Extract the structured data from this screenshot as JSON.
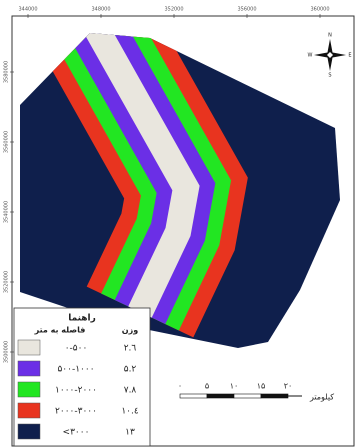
{
  "map": {
    "top_ticks": [
      "344000",
      "348000",
      "352000",
      "356000",
      "360000"
    ],
    "left_ticks": [
      "3580000",
      "3560000",
      "3540000",
      "3520000",
      "3500000"
    ],
    "compass": {
      "n": "N",
      "s": "S",
      "e": "E",
      "w": "W"
    },
    "legend": {
      "title": "راهنما",
      "col_distance": "فاصله به متر",
      "col_weight": "وزن",
      "rows": [
        {
          "label": "۰-۵۰۰",
          "weight": "۲.٦",
          "color": "#e9e6de"
        },
        {
          "label": "۵۰۰-۱۰۰۰",
          "weight": "۵.۲",
          "color": "#6b2fe6"
        },
        {
          "label": "۱۰۰۰-۲۰۰۰",
          "weight": "۷.۸",
          "color": "#22e622"
        },
        {
          "label": "۲۰۰۰-۳۰۰۰",
          "weight": "۱۰.٤",
          "color": "#e8341f"
        },
        {
          "label": "<۳۰۰۰",
          "weight": "۱۳",
          "color": "#0f1f4c"
        }
      ]
    },
    "scale": {
      "ticks": [
        "۰",
        "۵",
        "۱۰",
        "۱۵",
        "۲۰"
      ],
      "unit": "کیلومتر"
    }
  }
}
